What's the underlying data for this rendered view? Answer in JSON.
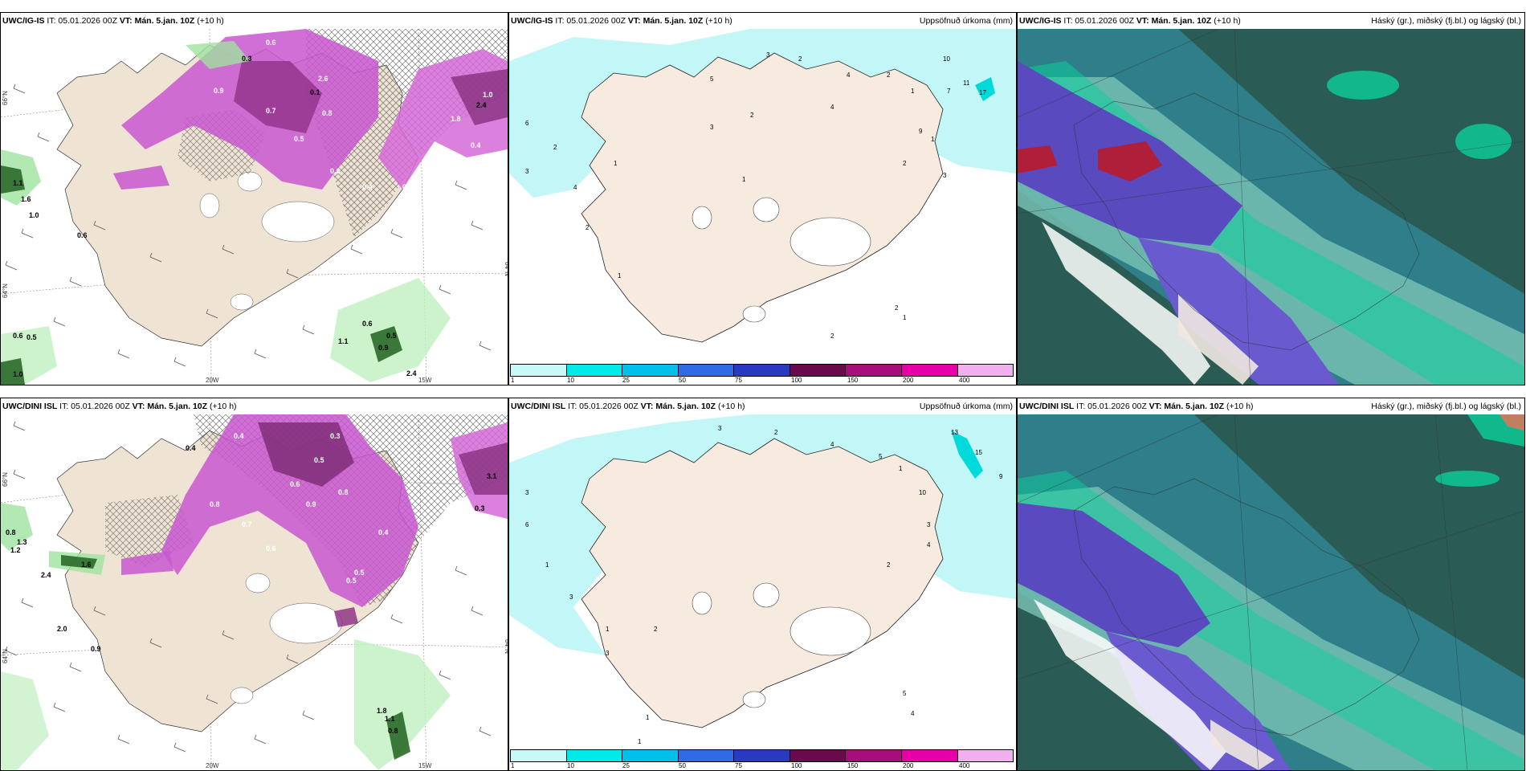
{
  "panels": {
    "p1": {
      "model": "UWC/IG-IS",
      "it": "IT: 05.01.2026 00Z",
      "vt_label": "VT:",
      "vt": "Mán. 5.jan. 10Z",
      "lead": "(+10 h)",
      "right": ""
    },
    "p2": {
      "model": "UWC/IG-IS",
      "it": "IT: 05.01.2026 00Z",
      "vt_label": "VT:",
      "vt": "Mán. 5.jan. 10Z",
      "lead": "(+10 h)",
      "right": "Uppsöfnuð úrkoma (mm)"
    },
    "p3": {
      "model": "UWC/IG-IS",
      "it": "IT: 05.01.2026 00Z",
      "vt_label": "VT:",
      "vt": "Mán. 5.jan. 10Z",
      "lead": "(+10 h)",
      "right": "Háský (gr.), miðský (fj.bl.) og lágský (bl.)"
    },
    "p4": {
      "model": "UWC/DINI ISL",
      "it": "IT: 05.01.2026 00Z",
      "vt_label": "VT:",
      "vt": "Mán. 5.jan. 10Z",
      "lead": "(+10 h)",
      "right": ""
    },
    "p5": {
      "model": "UWC/DINI ISL",
      "it": "IT: 05.01.2026 00Z",
      "vt_label": "VT:",
      "vt": "Mán. 5.jan. 10Z",
      "lead": "(+10 h)",
      "right": "Uppsöfnuð úrkoma (mm)"
    },
    "p6": {
      "model": "UWC/DINI ISL",
      "it": "IT: 05.01.2026 00Z",
      "vt_label": "VT:",
      "vt": "Mán. 5.jan. 10Z",
      "lead": "(+10 h)",
      "right": "Háský (gr.), miðský (fj.bl.) og lágský (bl.)"
    }
  },
  "axes": {
    "lat66": "66°N",
    "lat64": "64°N",
    "lon20": "20W",
    "lon15": "15W"
  },
  "legend": {
    "ticks": [
      "1",
      "10",
      "25",
      "50",
      "75",
      "100",
      "150",
      "200",
      "400"
    ],
    "colors": [
      "#c9f8f8",
      "#00eaea",
      "#00c0ea",
      "#2f6be6",
      "#2a3ac0",
      "#6a0a4e",
      "#a80d7c",
      "#e600a8",
      "#f0b0f0"
    ]
  },
  "p1_labels": [
    "0.3",
    "0.6",
    "2.6",
    "0.1",
    "0.9",
    "0.7",
    "0.5",
    "0.8",
    "1.0",
    "2.4",
    "0.4",
    "1.8",
    "0.4",
    "0.3",
    "0.4",
    "1.1",
    "1.6",
    "1.0",
    "0.6",
    "0.6",
    "0.5",
    "1.0",
    "1.1",
    "0.6",
    "0.9",
    "2.4",
    "0.5"
  ],
  "p4_labels": [
    "0.4",
    "0.3",
    "0.5",
    "0.6",
    "0.8",
    "0.9",
    "0.7",
    "0.4",
    "3.1",
    "0.3",
    "0.5",
    "0.8",
    "1.2",
    "1.3",
    "2.4",
    "1.6",
    "2.0",
    "0.9",
    "1.8",
    "1.1",
    "0.8",
    "0.6",
    "0.8",
    "0.4",
    "0.5"
  ],
  "p2_labels": [
    "3",
    "2",
    "4",
    "2",
    "1",
    "5",
    "6",
    "3",
    "1",
    "2",
    "4",
    "2",
    "1",
    "10",
    "11",
    "17",
    "7",
    "1",
    "2",
    "3",
    "9",
    "4",
    "2",
    "1",
    "3",
    "1",
    "2",
    "2"
  ],
  "p5_labels": [
    "3",
    "2",
    "4",
    "5",
    "1",
    "3",
    "6",
    "13",
    "15",
    "9",
    "10",
    "3",
    "2",
    "4",
    "1",
    "3",
    "1",
    "2",
    "3",
    "5",
    "4",
    "1",
    "1"
  ]
}
